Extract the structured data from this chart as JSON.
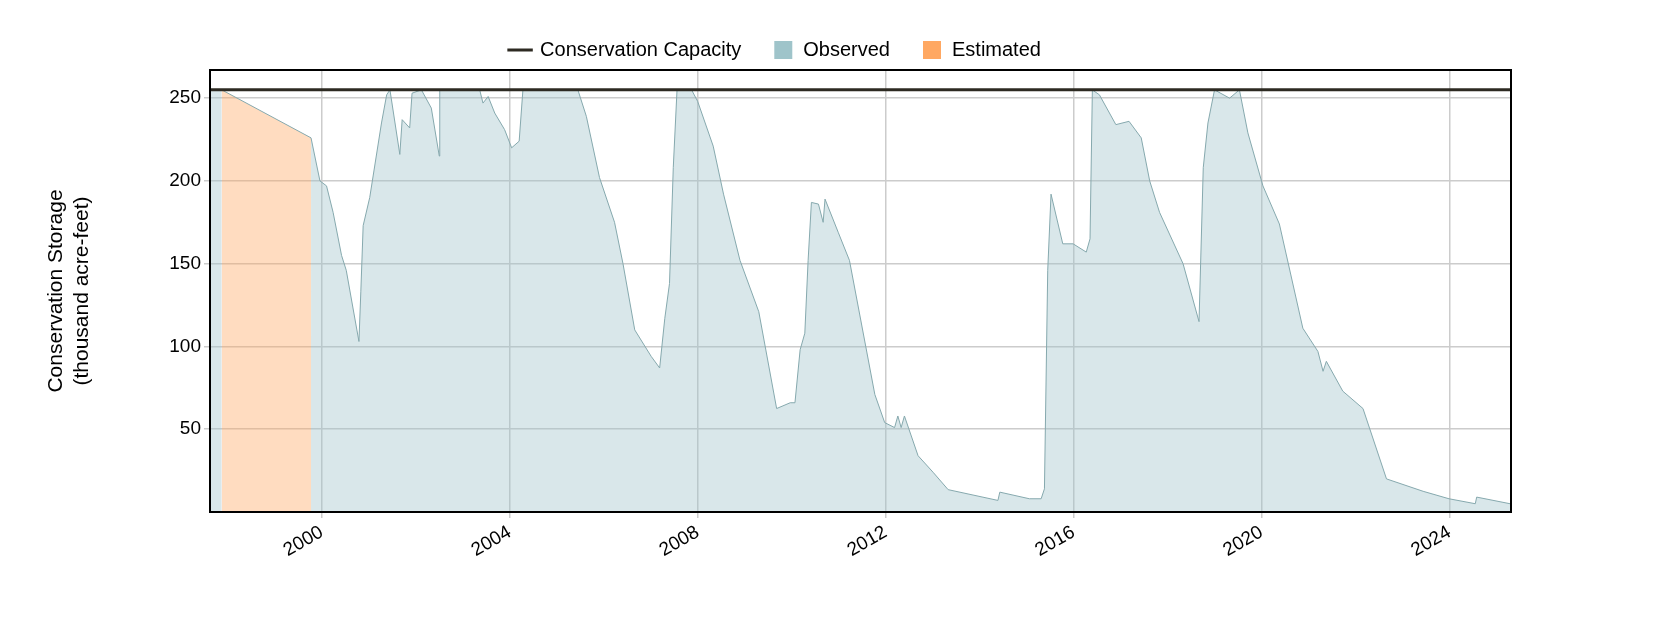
{
  "chart_data": {
    "type": "area",
    "ylabel": "Conservation Storage\n(thousand acre-feet)",
    "xlim": [
      1997.62,
      2025.31
    ],
    "xticks": [
      2000,
      2004,
      2008,
      2012,
      2016,
      2020,
      2024
    ],
    "ylim": [
      0,
      267
    ],
    "yticks": [
      50,
      100,
      150,
      200,
      250
    ],
    "grid": true,
    "legend": "top",
    "line_style": "solid",
    "marker": "none",
    "ref_lines": [
      {
        "axis": "y",
        "value": 255,
        "label": "Conservation Capacity",
        "color": "#2d2a22",
        "line_style": "solid"
      }
    ],
    "series": [
      {
        "name": "Observed",
        "color": "#9fc4ca",
        "x": [
          1997.62,
          1997.87,
          1998.8,
          1999.77,
          1999.96,
          2000.1,
          2000.24,
          2000.42,
          2000.52,
          2000.79,
          2000.83,
          2000.88,
          2001.02,
          2001.27,
          2001.38,
          2001.45,
          2001.66,
          2001.71,
          2001.87,
          2001.92,
          2002.12,
          2002.33,
          2002.5,
          2002.51,
          2003.36,
          2003.43,
          2003.54,
          2003.68,
          2003.89,
          2004.04,
          2004.2,
          2004.28,
          2005.45,
          2005.63,
          2005.91,
          2006.23,
          2006.41,
          2006.66,
          2007.01,
          2007.19,
          2007.3,
          2007.4,
          2007.48,
          2007.56,
          2007.87,
          2008.0,
          2008.33,
          2008.55,
          2008.9,
          2009.3,
          2009.68,
          2009.97,
          2010.07,
          2010.18,
          2010.28,
          2010.35,
          2010.42,
          2010.57,
          2010.67,
          2010.71,
          2010.99,
          2011.23,
          2011.77,
          2011.98,
          2012.19,
          2012.26,
          2012.33,
          2012.4,
          2012.69,
          2013.01,
          2013.33,
          2014.39,
          2014.43,
          2015.06,
          2015.31,
          2015.38,
          2015.45,
          2015.52,
          2015.77,
          2015.99,
          2016.27,
          2016.35,
          2016.4,
          2016.55,
          2016.9,
          2017.18,
          2017.44,
          2017.62,
          2017.83,
          2018.33,
          2018.67,
          2018.76,
          2018.86,
          2019.0,
          2019.32,
          2019.53,
          2019.71,
          2020.03,
          2020.38,
          2020.88,
          2021.2,
          2021.31,
          2021.38,
          2021.73,
          2022.16,
          2022.66,
          2023.44,
          2023.99,
          2024.55,
          2024.58,
          2025.29
        ],
        "values": [
          255,
          255,
          null,
          226,
          200,
          197,
          181,
          155,
          146,
          103,
          133,
          173,
          190,
          235,
          252,
          255,
          216,
          237,
          232,
          253,
          255,
          244,
          215,
          255,
          255,
          247,
          251,
          241,
          231,
          220,
          224,
          255,
          255,
          239,
          202,
          175,
          150,
          110,
          94,
          87,
          117,
          138,
          208,
          255,
          255,
          248,
          221,
          192,
          152,
          121,
          62.5,
          66,
          66,
          98,
          108,
          152,
          187,
          186,
          175,
          189,
          169,
          152,
          71,
          54,
          51,
          58,
          51,
          58,
          34,
          24,
          13.5,
          7,
          12,
          8,
          8,
          14,
          146,
          192,
          162,
          162,
          157,
          165,
          255,
          252,
          234,
          236,
          226,
          200,
          181,
          150,
          115,
          208,
          235,
          255,
          250,
          255,
          229,
          197,
          174,
          111,
          97,
          85,
          91,
          73,
          62.5,
          20,
          12.5,
          8,
          5,
          9,
          5
        ]
      },
      {
        "name": "Estimated",
        "color": "#ffa862",
        "x": [
          1997.87,
          1999.77
        ],
        "values": [
          255,
          226
        ]
      }
    ]
  }
}
